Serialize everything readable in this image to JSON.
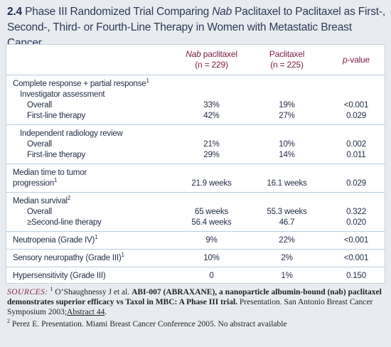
{
  "title": {
    "number": "2.4",
    "prefix": "Phase III Randomized Trial Comparing ",
    "italic": "Nab",
    "suffix": " Paclitaxel to Paclitaxel as First-, Second-, Third- or Fourth-Line Therapy in Women with Metastatic Breast Cancer"
  },
  "table": {
    "header": [
      {
        "italic": "Nab",
        "text": " paclitaxel",
        "n": "(n = 229)"
      },
      {
        "text": "Paclitaxel",
        "n": "(n = 225)"
      },
      {
        "italic": "p",
        "text": "-value"
      }
    ],
    "groups": [
      {
        "rows": [
          {
            "label": "Complete response + partial response",
            "sup": "1"
          },
          {
            "label": "Investigator assessment"
          },
          {
            "label": "Overall",
            "cells": [
              "33%",
              "19%",
              "<0.001"
            ]
          },
          {
            "label": "First-line therapy",
            "cells": [
              "42%",
              "27%",
              "0.029"
            ]
          }
        ]
      },
      {
        "rows": [
          {
            "label": "Independent radiology review"
          },
          {
            "label": "Overall",
            "cells": [
              "21%",
              "10%",
              "0.002"
            ]
          },
          {
            "label": "First-line therapy",
            "cells": [
              "29%",
              "14%",
              "0.011"
            ]
          }
        ]
      },
      {
        "rows": [
          {
            "label": "Median time to tumor"
          },
          {
            "label": "progression",
            "sup": "1",
            "cells": [
              "21.9 weeks",
              "16.1 weeks",
              "0.029"
            ]
          }
        ]
      },
      {
        "rows": [
          {
            "label": "Median survival",
            "sup": "2"
          },
          {
            "label": "Overall",
            "cells": [
              "65 weeks",
              "55.3 weeks",
              "0.322"
            ]
          },
          {
            "label": "≥Second-line therapy",
            "cells": [
              "56.4 weeks",
              "46.7",
              "0.020"
            ]
          }
        ]
      },
      {
        "rows": [
          {
            "label": "Neutropenia (Grade IV)",
            "sup": "1",
            "cells": [
              "9%",
              "22%",
              "<0.001"
            ]
          }
        ]
      },
      {
        "rows": [
          {
            "label": "Sensory neuropathy (Grade III)",
            "sup": "1",
            "cells": [
              "10%",
              "2%",
              "<0.001"
            ]
          }
        ]
      },
      {
        "rows": [
          {
            "label": "Hypersensitivity (Grade III)",
            "cells": [
              "0",
              "1%",
              "0.150"
            ]
          }
        ]
      }
    ]
  },
  "sources": {
    "heading": "SOURCES:",
    "items": [
      {
        "number": "1",
        "text": "O’Shaughnessy J et al. ",
        "bold": "ABI-007 (ABRAXANE), a nanoparticle albumin-bound (nab) paclitaxel demonstrates superior efficacy vs Taxol in MBC: A Phase III trial.",
        "text2": " Presentation. San Antonio Breast Cancer Symposium 2003;",
        "link": "Abstract 44",
        "end": "."
      },
      {
        "number": "2",
        "text": "Perez E. Presentation. Miami Breast Cancer Conference 2005. No abstract available"
      }
    ]
  }
}
